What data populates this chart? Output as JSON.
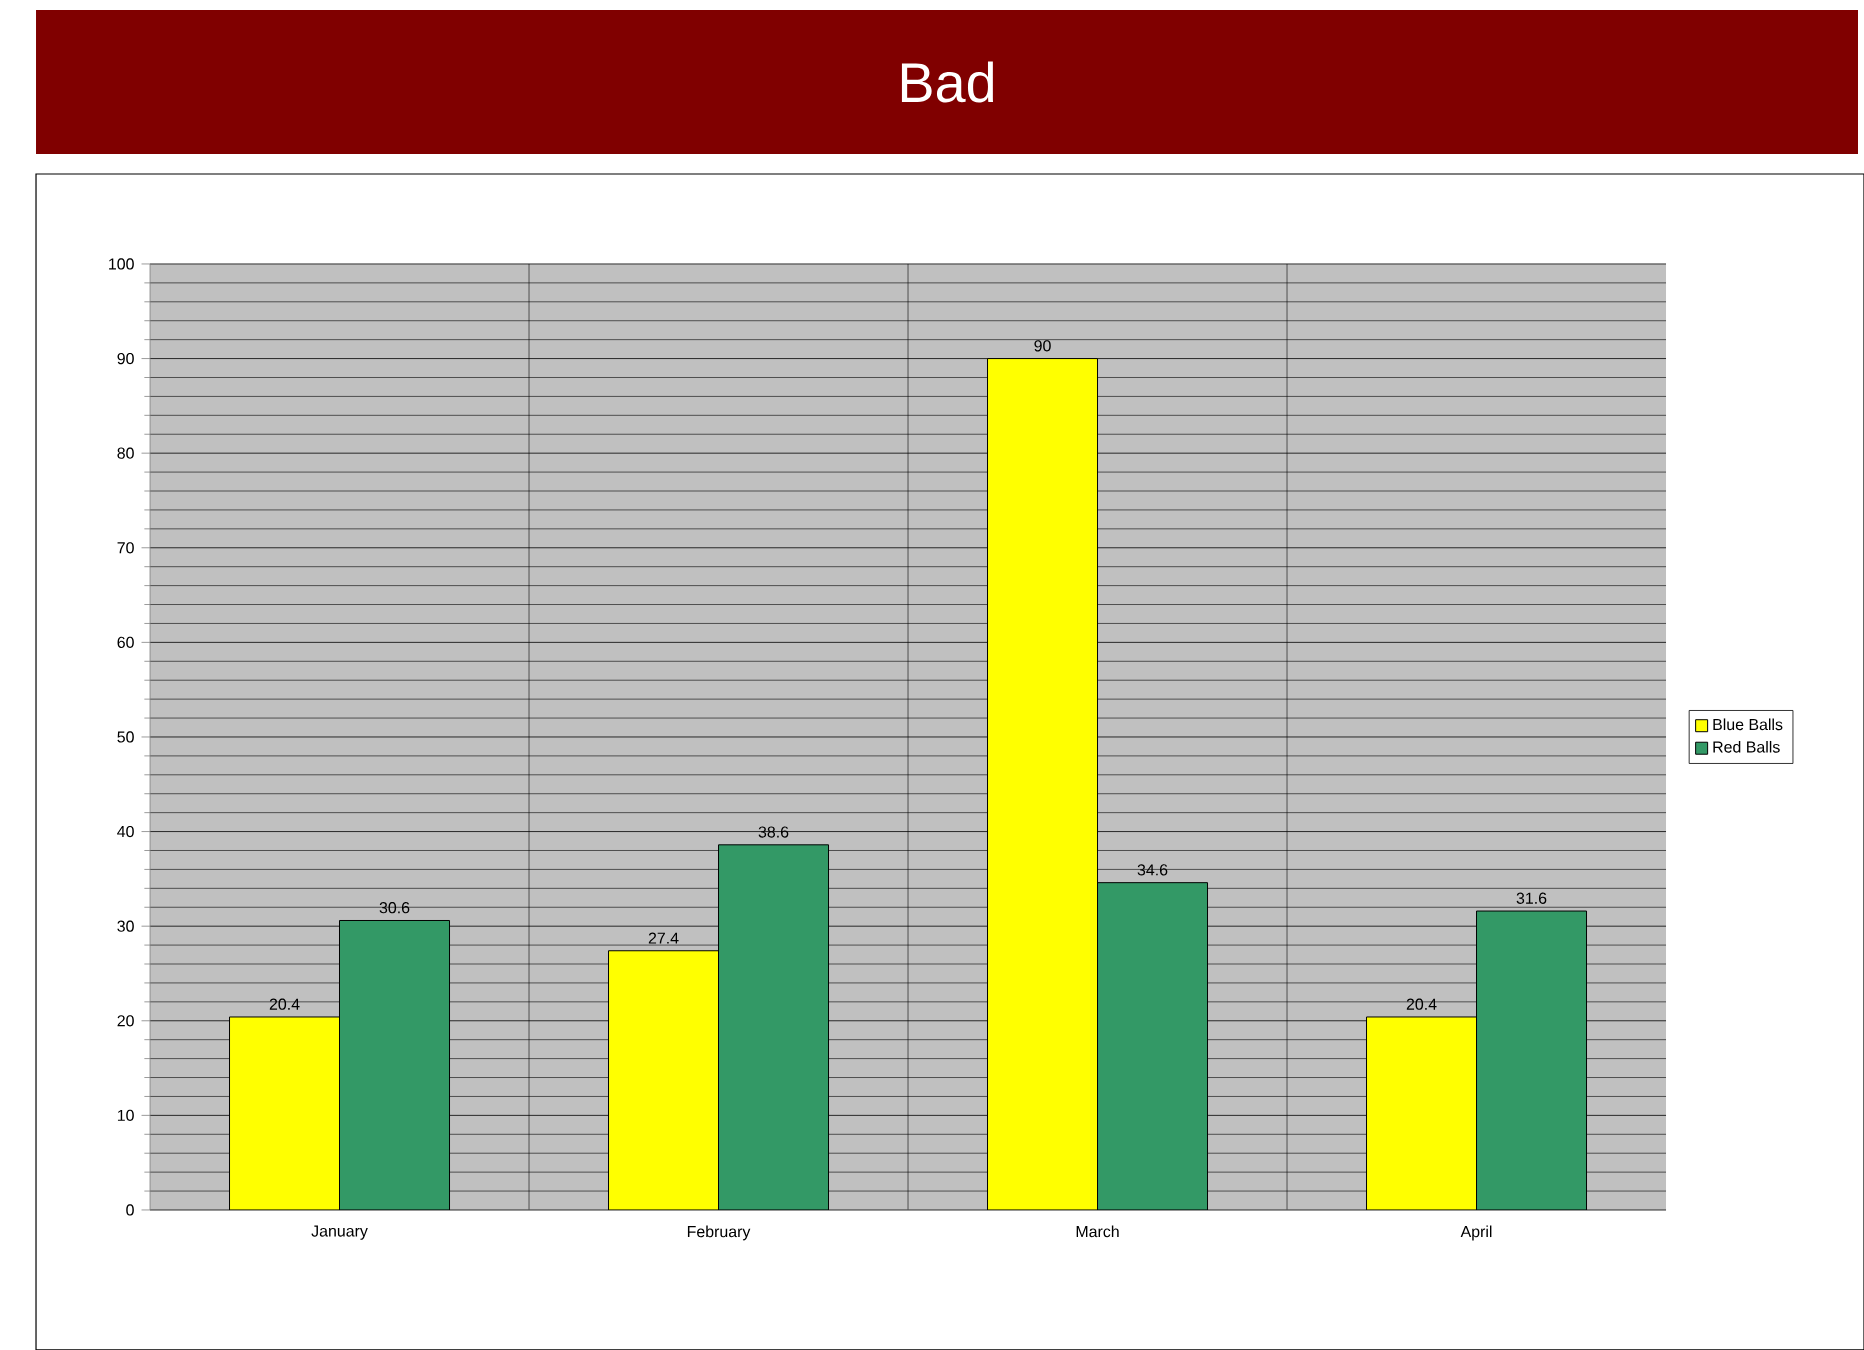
{
  "chart_data": {
    "type": "bar",
    "title": "Bad",
    "categories": [
      "January",
      "February",
      "March",
      "April"
    ],
    "series": [
      {
        "name": "Blue Balls",
        "color": "#ffff00",
        "values": [
          20.4,
          27.4,
          90,
          20.4
        ]
      },
      {
        "name": "Red Balls",
        "color": "#339966",
        "values": [
          30.6,
          38.6,
          34.6,
          31.6
        ]
      }
    ],
    "ylim": [
      0,
      100
    ],
    "yticks": [
      0,
      10,
      20,
      30,
      40,
      50,
      60,
      70,
      80,
      90,
      100
    ],
    "grid": true,
    "legend": "right",
    "data_labels": true
  }
}
